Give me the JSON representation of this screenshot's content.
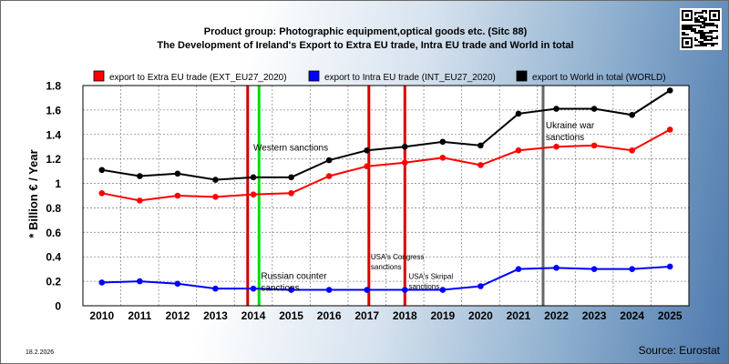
{
  "chart_data": {
    "type": "line",
    "title": "Product group: Photographic equipment,optical goods etc. (Sitc 88)",
    "subtitle": "The Development of Ireland's Export to Extra EU trade, Intra EU trade and World in total",
    "ylabel": "* Billion € / Year",
    "xlabel": "",
    "categories": [
      "2010",
      "2011",
      "2012",
      "2013",
      "2014",
      "2015",
      "2016",
      "2017",
      "2018",
      "2019",
      "2020",
      "2021",
      "2022",
      "2023",
      "2024",
      "2025"
    ],
    "ylim": [
      0,
      1.8
    ],
    "yticks": [
      "0",
      "0.2",
      "0.4",
      "0.6",
      "0.8",
      "1",
      "1.2",
      "1.4",
      "1.6",
      "1.8"
    ],
    "grid": true,
    "legend_position": "top",
    "series": [
      {
        "name": "export to Extra EU trade (EXT_EU27_2020)",
        "color": "#ff0000",
        "values": [
          0.92,
          0.86,
          0.9,
          0.89,
          0.91,
          0.92,
          1.06,
          1.14,
          1.17,
          1.21,
          1.15,
          1.27,
          1.3,
          1.31,
          1.27,
          1.44
        ]
      },
      {
        "name": "export to Intra EU trade (INT_EU27_2020)",
        "color": "#0000ff",
        "values": [
          0.19,
          0.2,
          0.18,
          0.14,
          0.14,
          0.13,
          0.13,
          0.13,
          0.13,
          0.13,
          0.16,
          0.3,
          0.31,
          0.3,
          0.3,
          0.32
        ]
      },
      {
        "name": "export to World in total (WORLD)",
        "color": "#000000",
        "values": [
          1.11,
          1.06,
          1.08,
          1.03,
          1.05,
          1.05,
          1.19,
          1.27,
          1.3,
          1.34,
          1.31,
          1.57,
          1.61,
          1.61,
          1.56,
          1.76
        ]
      }
    ],
    "events": [
      {
        "label_lines": [
          "Western sanctions"
        ],
        "year": 2013.85,
        "color": "#cc0000",
        "text_year": 2014,
        "text_value": 1.27,
        "text_size": 10
      },
      {
        "label_lines": [
          "Russian counter",
          "sanctions"
        ],
        "year": 2014.15,
        "color": "#00dd00",
        "text_year": 2014.2,
        "text_value": 0.22,
        "text_size": 10
      },
      {
        "label_lines": [
          "USA's Congress",
          "sanctions"
        ],
        "year": 2017.05,
        "color": "#dd0000",
        "text_year": 2017.1,
        "text_value": 0.38,
        "text_size": 8
      },
      {
        "label_lines": [
          "USA's Skripal",
          "sanctions"
        ],
        "year": 2018.0,
        "color": "#dd0000",
        "text_year": 2018.1,
        "text_value": 0.22,
        "text_size": 8
      },
      {
        "label_lines": [
          "Ukraine war",
          "sanctions"
        ],
        "year": 2021.65,
        "color": "#666666",
        "text_year": 2021.72,
        "text_value": 1.45,
        "text_size": 10
      }
    ]
  },
  "footer": {
    "date": "18.2.2026",
    "source": "Source: Eurostat"
  },
  "qr_icon": "qr-code-icon"
}
